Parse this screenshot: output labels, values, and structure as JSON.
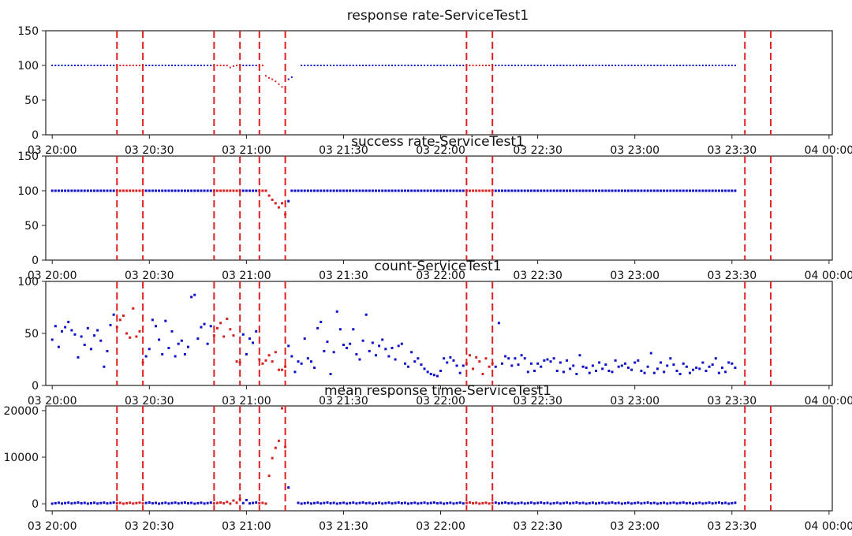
{
  "colors": {
    "normal": "#1010c8",
    "anomaly": "#d62020",
    "vline": "#e02020",
    "axis": "#222222"
  },
  "x_range_minutes": [
    -10,
    1205
  ],
  "x_ticks": [
    {
      "label": "03 20:00",
      "min": 0
    },
    {
      "label": "03 20:30",
      "min": 30
    },
    {
      "label": "03 21:00",
      "min": 60
    },
    {
      "label": "03 21:30",
      "min": 90
    },
    {
      "label": "03 22:00",
      "min": 120
    },
    {
      "label": "03 22:30",
      "min": 150
    },
    {
      "label": "03 23:00",
      "min": 180
    },
    {
      "label": "03 23:30",
      "min": 210
    },
    {
      "label": "04 00:00",
      "min": 240
    }
  ],
  "anomaly_windows": [
    [
      20,
      28
    ],
    [
      50,
      58
    ],
    [
      64,
      72
    ],
    [
      128,
      136
    ],
    [
      214,
      222
    ]
  ],
  "chart_data": [
    {
      "type": "scatter",
      "title": "response rate-ServiceTest1",
      "ylim": [
        0,
        150
      ],
      "yticks": [
        "0",
        "50",
        "100",
        "150"
      ],
      "marker": 2,
      "baseline": 100,
      "gap": [
        73,
        76
      ],
      "overrides": [
        [
          66,
          85
        ],
        [
          67,
          82
        ],
        [
          68,
          80
        ],
        [
          69,
          77
        ],
        [
          70,
          73
        ],
        [
          71,
          69
        ],
        [
          72,
          66
        ],
        [
          73,
          80
        ],
        [
          74,
          83
        ],
        [
          55,
          97
        ],
        [
          56,
          99
        ]
      ],
      "noise": 0
    },
    {
      "type": "scatter",
      "title": "success rate-ServiceTest1",
      "ylim": [
        0,
        150
      ],
      "yticks": [
        "0",
        "50",
        "100",
        "150"
      ],
      "marker": 3,
      "baseline": 100,
      "gap": [
        73,
        73
      ],
      "overrides": [
        [
          67,
          93
        ],
        [
          68,
          87
        ],
        [
          69,
          82
        ],
        [
          70,
          76
        ],
        [
          71,
          82
        ],
        [
          72,
          66
        ],
        [
          73,
          85
        ]
      ],
      "noise": 0
    },
    {
      "type": "scatter",
      "title": "count-ServiceTest1",
      "ylim": [
        0,
        100
      ],
      "yticks": [
        "0",
        "50",
        "100"
      ],
      "marker": 3,
      "values": [
        44,
        57,
        37,
        52,
        56,
        61,
        53,
        49,
        27,
        47,
        39,
        55,
        35,
        48,
        53,
        43,
        18,
        33,
        58,
        68,
        56,
        63,
        67,
        50,
        46,
        74,
        47,
        52,
        22,
        28,
        35,
        63,
        57,
        44,
        30,
        62,
        36,
        52,
        28,
        40,
        43,
        30,
        37,
        85,
        87,
        45,
        56,
        59,
        40,
        57,
        48,
        55,
        60,
        47,
        64,
        54,
        48,
        23,
        22,
        49,
        30,
        45,
        41,
        52,
        25,
        21,
        24,
        29,
        23,
        32,
        15,
        15,
        18,
        38,
        28,
        13,
        23,
        21,
        45,
        26,
        23,
        17,
        55,
        61,
        33,
        42,
        11,
        32,
        71,
        54,
        39,
        36,
        40,
        54,
        30,
        25,
        43,
        68,
        33,
        41,
        29,
        38,
        44,
        35,
        28,
        36,
        25,
        38,
        40,
        21,
        18,
        32,
        23,
        26,
        20,
        16,
        13,
        11,
        10,
        9,
        14,
        26,
        22,
        27,
        24,
        19,
        12,
        19,
        21,
        29,
        16,
        27,
        23,
        11,
        26,
        18,
        21,
        18,
        60,
        21,
        28,
        26,
        19,
        26,
        20,
        29,
        26,
        13,
        21,
        14,
        21,
        18,
        24,
        25,
        23,
        26,
        14,
        22,
        13,
        24,
        16,
        19,
        11,
        29,
        18,
        17,
        12,
        19,
        14,
        22,
        16,
        20,
        14,
        13,
        24,
        18,
        19,
        21,
        17,
        15,
        22,
        24,
        14,
        12,
        18,
        31,
        12,
        16,
        22,
        13,
        19,
        26,
        20,
        14,
        11,
        21,
        18,
        12,
        15,
        17,
        16,
        22,
        14,
        18,
        20,
        26,
        12,
        17,
        13,
        22,
        21,
        17,
        16,
        28,
        25
      ]
    },
    {
      "type": "scatter",
      "title": "mean response time-ServiceTest1",
      "ylim": [
        -1500,
        21000
      ],
      "yticks": [
        "0",
        "10000",
        "20000"
      ],
      "marker": 3,
      "baseline": 150,
      "gap": [
        74,
        75
      ],
      "overrides": [
        [
          54,
          400
        ],
        [
          56,
          700
        ],
        [
          58,
          1000
        ],
        [
          60,
          800
        ],
        [
          67,
          6000
        ],
        [
          68,
          9800
        ],
        [
          69,
          12000
        ],
        [
          70,
          13500
        ],
        [
          71,
          20500
        ],
        [
          72,
          12200
        ],
        [
          73,
          3500
        ]
      ],
      "noise": 120
    }
  ]
}
